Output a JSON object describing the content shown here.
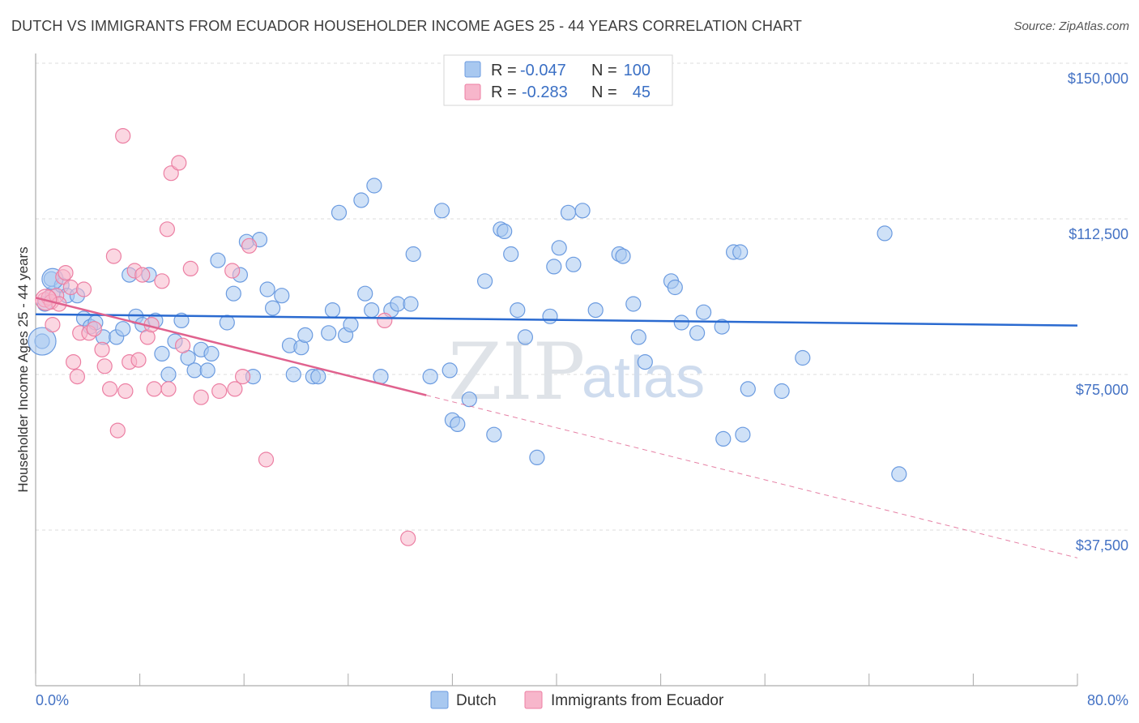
{
  "header": {
    "title": "DUTCH VS IMMIGRANTS FROM ECUADOR HOUSEHOLDER INCOME AGES 25 - 44 YEARS CORRELATION CHART",
    "source": "Source: ZipAtlas.com"
  },
  "watermark": {
    "zip": "ZIP",
    "atlas": "atlas"
  },
  "legend": {
    "rows": [
      {
        "r_label": "R =",
        "r_value": "-0.047",
        "n_label": "N =",
        "n_value": "100",
        "color": "#a8c8f0"
      },
      {
        "r_label": "R =",
        "r_value": "-0.283",
        "n_label": "N =",
        "n_value": "45",
        "color": "#f7b6cb"
      }
    ]
  },
  "bottom_legend": {
    "items": [
      {
        "label": "Dutch",
        "color": "#a8c8f0"
      },
      {
        "label": "Immigrants from Ecuador",
        "color": "#f7b6cb"
      }
    ]
  },
  "chart_data": {
    "type": "scatter",
    "xlabel": "",
    "ylabel": "Householder Income Ages 25 - 44 years",
    "xlim": [
      0,
      80
    ],
    "ylim": [
      0,
      155000
    ],
    "x_tick_labels": [
      "0.0%",
      "80.0%"
    ],
    "y_ticks": [
      37500,
      75000,
      112500,
      150000
    ],
    "y_tick_labels": [
      "$37,500",
      "$75,000",
      "$112,500",
      "$150,000"
    ],
    "grid": "horizontal dashed",
    "legend_position": "top-center",
    "series": [
      {
        "name": "Dutch",
        "color": "#6b9be0",
        "fill": "#a8c8f0",
        "trend": {
          "x": [
            0,
            80
          ],
          "y": [
            89500,
            86800
          ],
          "style": "solid",
          "color": "#2a6ad0"
        },
        "points": [
          [
            0.5,
            83000
          ],
          [
            0.7,
            92000
          ],
          [
            1.2,
            98000
          ],
          [
            1.3,
            94500
          ],
          [
            2.0,
            96500
          ],
          [
            2.4,
            94000
          ],
          [
            3.2,
            94000
          ],
          [
            3.7,
            88500
          ],
          [
            4.2,
            86500
          ],
          [
            4.6,
            87500
          ],
          [
            5.2,
            84000
          ],
          [
            6.2,
            84000
          ],
          [
            6.7,
            86000
          ],
          [
            7.2,
            99000
          ],
          [
            7.7,
            89000
          ],
          [
            8.2,
            87000
          ],
          [
            8.7,
            99000
          ],
          [
            9.2,
            88000
          ],
          [
            9.7,
            80000
          ],
          [
            10.2,
            75000
          ],
          [
            10.7,
            83000
          ],
          [
            11.2,
            88000
          ],
          [
            11.7,
            79000
          ],
          [
            12.2,
            76000
          ],
          [
            12.7,
            81000
          ],
          [
            13.2,
            76000
          ],
          [
            13.5,
            80000
          ],
          [
            14.0,
            102500
          ],
          [
            14.7,
            87500
          ],
          [
            15.2,
            94500
          ],
          [
            15.7,
            99000
          ],
          [
            16.2,
            107000
          ],
          [
            16.7,
            74500
          ],
          [
            17.2,
            107500
          ],
          [
            17.8,
            95500
          ],
          [
            18.2,
            91000
          ],
          [
            18.9,
            94000
          ],
          [
            19.5,
            82000
          ],
          [
            19.8,
            75000
          ],
          [
            20.4,
            81500
          ],
          [
            20.7,
            84500
          ],
          [
            21.3,
            74500
          ],
          [
            21.7,
            74500
          ],
          [
            22.5,
            85000
          ],
          [
            22.8,
            90500
          ],
          [
            23.3,
            114000
          ],
          [
            23.8,
            84500
          ],
          [
            24.2,
            87000
          ],
          [
            25.0,
            117000
          ],
          [
            25.3,
            94500
          ],
          [
            25.8,
            90500
          ],
          [
            26.0,
            120500
          ],
          [
            26.5,
            74500
          ],
          [
            27.3,
            90500
          ],
          [
            27.8,
            92000
          ],
          [
            28.8,
            92000
          ],
          [
            29.0,
            104000
          ],
          [
            30.3,
            74500
          ],
          [
            31.2,
            114500
          ],
          [
            31.8,
            76000
          ],
          [
            32.0,
            64000
          ],
          [
            32.4,
            63000
          ],
          [
            33.3,
            69000
          ],
          [
            34.5,
            97500
          ],
          [
            35.2,
            60500
          ],
          [
            35.7,
            110000
          ],
          [
            36.0,
            109500
          ],
          [
            36.5,
            104000
          ],
          [
            37.0,
            90500
          ],
          [
            37.6,
            84000
          ],
          [
            38.5,
            55000
          ],
          [
            39.5,
            89000
          ],
          [
            39.8,
            101000
          ],
          [
            40.2,
            105500
          ],
          [
            40.9,
            114000
          ],
          [
            41.3,
            101500
          ],
          [
            42.0,
            114500
          ],
          [
            43.0,
            90500
          ],
          [
            44.8,
            104000
          ],
          [
            45.1,
            103500
          ],
          [
            45.9,
            92000
          ],
          [
            46.3,
            84000
          ],
          [
            46.8,
            78000
          ],
          [
            48.8,
            97500
          ],
          [
            49.1,
            96000
          ],
          [
            49.6,
            87500
          ],
          [
            50.8,
            85000
          ],
          [
            51.3,
            90000
          ],
          [
            52.7,
            86500
          ],
          [
            52.8,
            59500
          ],
          [
            53.6,
            104500
          ],
          [
            54.1,
            104500
          ],
          [
            54.3,
            60500
          ],
          [
            54.7,
            71500
          ],
          [
            57.3,
            71000
          ],
          [
            58.9,
            79000
          ],
          [
            65.2,
            109000
          ],
          [
            66.3,
            51000
          ]
        ]
      },
      {
        "name": "Immigrants from Ecuador",
        "color": "#ec7fa3",
        "fill": "#f7b6cb",
        "trend": {
          "x": [
            0,
            30
          ],
          "y": [
            93500,
            70000
          ],
          "style": "solid",
          "color": "#e0628e",
          "extension": {
            "x": [
              30,
              80
            ],
            "y": [
              70000,
              30800
            ],
            "style": "dashed"
          }
        },
        "points": [
          [
            0.7,
            93000
          ],
          [
            1.0,
            93500
          ],
          [
            1.2,
            92500
          ],
          [
            1.3,
            87000
          ],
          [
            1.6,
            94000
          ],
          [
            1.8,
            92000
          ],
          [
            2.1,
            98500
          ],
          [
            2.3,
            99500
          ],
          [
            2.7,
            96000
          ],
          [
            2.9,
            78000
          ],
          [
            3.2,
            74500
          ],
          [
            3.4,
            85000
          ],
          [
            3.7,
            95500
          ],
          [
            4.1,
            85000
          ],
          [
            4.5,
            86000
          ],
          [
            5.1,
            81000
          ],
          [
            5.3,
            77000
          ],
          [
            5.7,
            71500
          ],
          [
            6.0,
            103500
          ],
          [
            6.3,
            61500
          ],
          [
            6.7,
            132500
          ],
          [
            6.9,
            71000
          ],
          [
            7.2,
            78000
          ],
          [
            7.6,
            100000
          ],
          [
            7.9,
            78500
          ],
          [
            8.2,
            99000
          ],
          [
            8.6,
            84000
          ],
          [
            8.9,
            87000
          ],
          [
            9.1,
            71500
          ],
          [
            9.7,
            97500
          ],
          [
            10.1,
            110000
          ],
          [
            10.2,
            71500
          ],
          [
            10.4,
            123500
          ],
          [
            11.0,
            126000
          ],
          [
            11.3,
            82000
          ],
          [
            11.9,
            100500
          ],
          [
            12.7,
            69500
          ],
          [
            14.1,
            71000
          ],
          [
            15.1,
            100000
          ],
          [
            15.3,
            71500
          ],
          [
            15.9,
            74500
          ],
          [
            16.4,
            106000
          ],
          [
            17.7,
            54500
          ],
          [
            26.8,
            88000
          ],
          [
            28.6,
            35500
          ]
        ]
      }
    ]
  }
}
